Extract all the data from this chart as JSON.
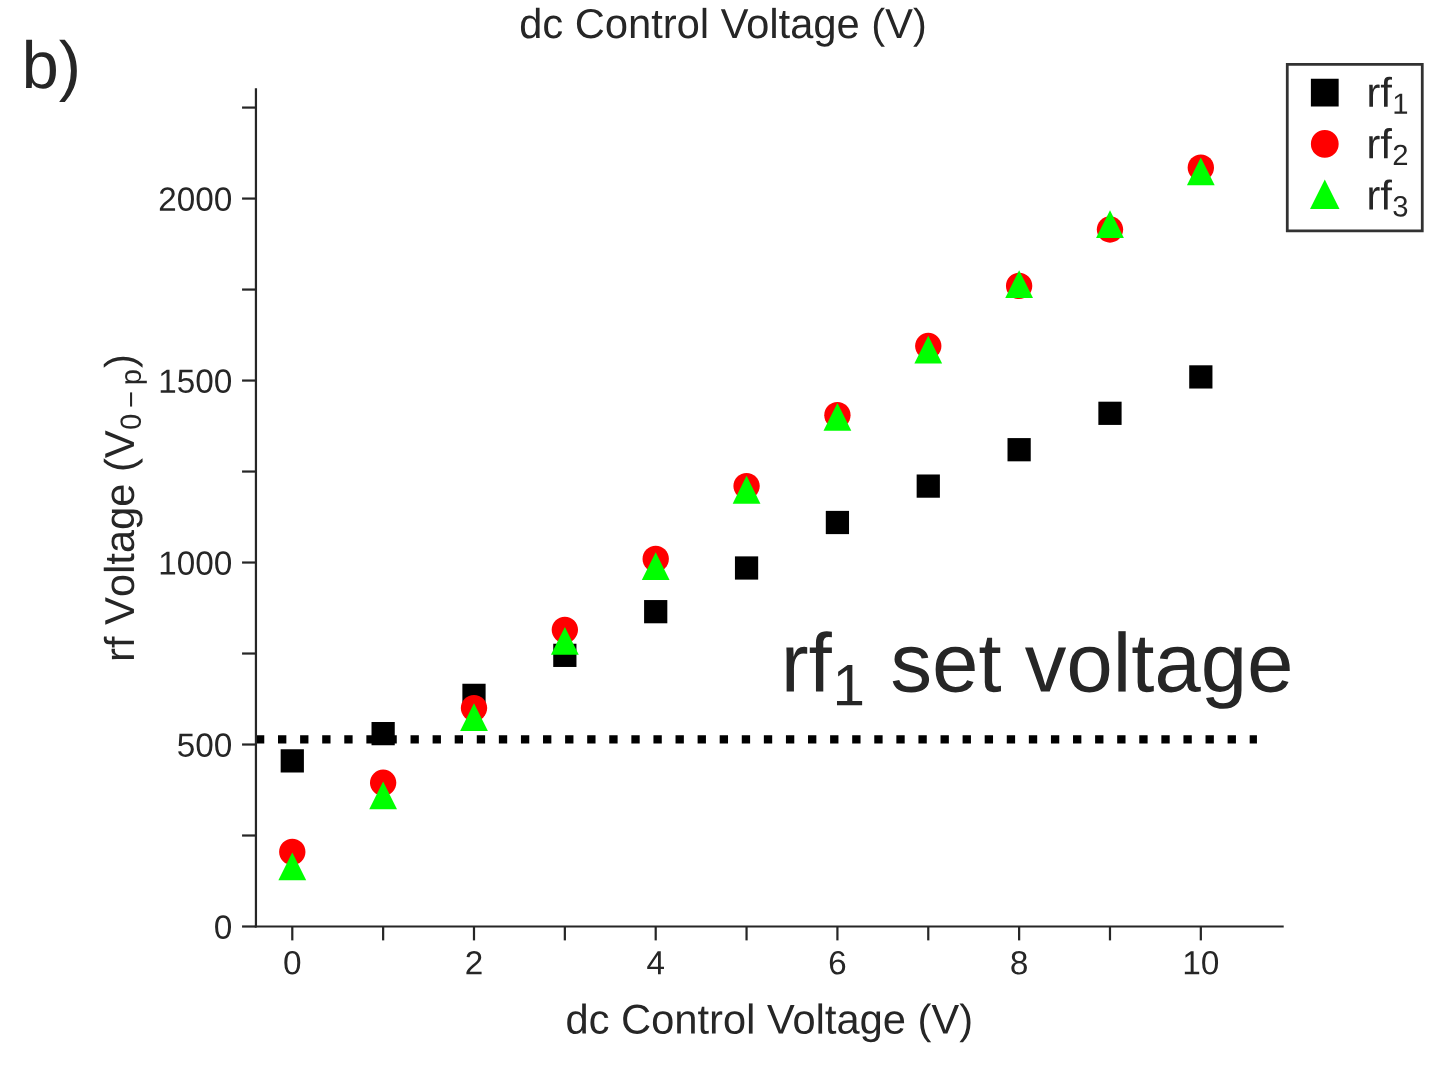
{
  "chart_data": {
    "type": "scatter",
    "xlabel": "dc Control Voltage (V)",
    "ylabel": "rf Voltage (V$_{0−p}$)",
    "annotations": [
      "b)",
      "dc Control Voltage (V)",
      "rf$_{1}$ set voltage"
    ],
    "x": [
      0,
      1,
      2,
      3,
      4,
      5,
      6,
      7,
      8,
      9,
      10
    ],
    "series": [
      {
        "name": "rf$_{1}$",
        "color": "#000000",
        "marker": "square",
        "values": [
          455,
          530,
          635,
          745,
          865,
          985,
          1110,
          1210,
          1310,
          1410,
          1510
        ]
      },
      {
        "name": "rf$_{2}$",
        "color": "#ff0000",
        "marker": "circle",
        "values": [
          205,
          395,
          600,
          815,
          1010,
          1210,
          1405,
          1595,
          1760,
          1915,
          2085
        ]
      },
      {
        "name": "rf$_{3}$",
        "color": "#00ff00",
        "marker": "triangle",
        "values": [
          165,
          360,
          575,
          785,
          990,
          1200,
          1400,
          1585,
          1765,
          1930,
          2075
        ]
      }
    ],
    "xlim": [
      -0.4,
      10.9
    ],
    "xticks": [
      0,
      {
        "value": 1,
        "label": null
      },
      2,
      {
        "value": 3,
        "label": null
      },
      4,
      {
        "value": 5,
        "label": null
      },
      6,
      {
        "value": 7,
        "label": null
      },
      8,
      {
        "value": 9,
        "label": null
      },
      10
    ],
    "ylim": [
      0,
      2300
    ],
    "yticks": [
      0,
      {
        "value": 250,
        "label": null
      },
      500,
      {
        "value": 750,
        "label": null
      },
      1000,
      {
        "value": 1250,
        "label": null
      },
      1500,
      {
        "value": 1750,
        "label": null
      },
      2000,
      {
        "value": 2250,
        "label": null
      }
    ],
    "ref_lines": [
      {
        "axis": "y",
        "value": 514,
        "color": "#000000",
        "line_style": "dotted"
      }
    ],
    "grid": false,
    "legend": "top right"
  }
}
